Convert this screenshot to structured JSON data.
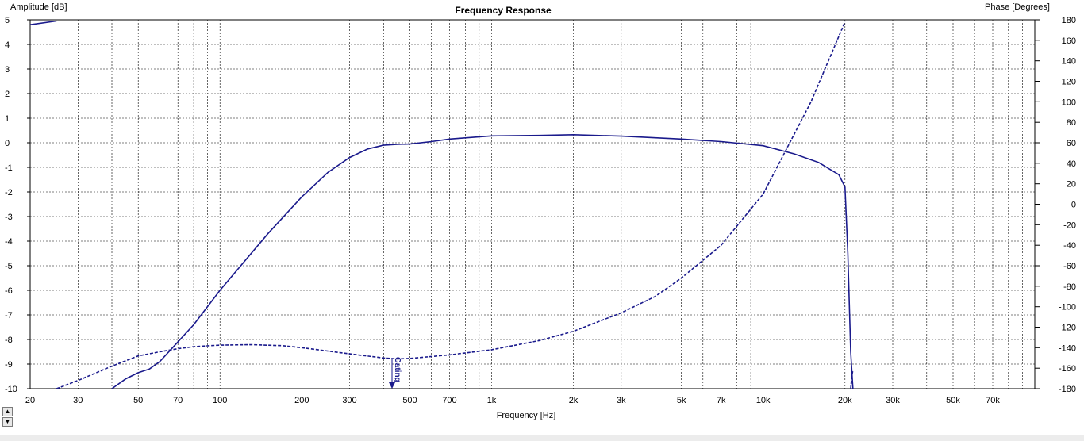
{
  "chart_data": {
    "type": "line",
    "title": "Frequency Response",
    "xlabel": "Frequency [Hz]",
    "ylabel_left": "Amplitude [dB]",
    "ylabel_right": "Phase [Degrees]",
    "x_scale": "log",
    "xlim": [
      20,
      100000
    ],
    "ylim_left": [
      -10,
      5
    ],
    "ylim_right": [
      -180,
      180
    ],
    "grid": true,
    "x_major_ticks": [
      20,
      30,
      50,
      70,
      100,
      200,
      300,
      500,
      700,
      1000,
      2000,
      3000,
      5000,
      7000,
      10000,
      20000,
      30000,
      50000,
      70000
    ],
    "x_tick_labels": [
      "20",
      "30",
      "50",
      "70",
      "100",
      "200",
      "300",
      "500",
      "700",
      "1k",
      "2k",
      "3k",
      "5k",
      "7k",
      "10k",
      "20k",
      "30k",
      "50k",
      "70k"
    ],
    "y_left_ticks": [
      5,
      4,
      3,
      2,
      1,
      0,
      -1,
      -2,
      -3,
      -4,
      -5,
      -6,
      -7,
      -8,
      -9,
      -10
    ],
    "y_left_tick_labels": [
      "5",
      "4",
      "3",
      "2",
      "1",
      "0",
      "-1",
      "-2",
      "-3",
      "-4",
      "-5",
      "-6",
      "-7",
      "-8",
      "-9",
      "-10"
    ],
    "y_right_ticks": [
      180,
      160,
      140,
      120,
      100,
      80,
      60,
      40,
      20,
      0,
      -20,
      -40,
      -60,
      -80,
      -100,
      -120,
      -140,
      -160,
      -180
    ],
    "y_right_tick_labels": [
      "180",
      "160",
      "140",
      "120",
      "100",
      "80",
      "60",
      "40",
      "20",
      "0",
      "-20",
      "-40",
      "-60",
      "-80",
      "-100",
      "-120",
      "-140",
      "-160",
      "-180"
    ],
    "series": [
      {
        "axis": "left",
        "style": "solid",
        "color": "#1a1a8c",
        "x": [
          40,
          45,
          50,
          55,
          60,
          70,
          80,
          100,
          150,
          200,
          250,
          300,
          350,
          400,
          450,
          500,
          600,
          700,
          800,
          1000,
          1500,
          2000,
          3000,
          5000,
          7000,
          10000,
          13000,
          16000,
          19000,
          20000,
          20500,
          21000,
          21400
        ],
        "y": [
          -10,
          -9.6,
          -9.35,
          -9.2,
          -8.9,
          -8.1,
          -7.4,
          -6.0,
          -3.7,
          -2.2,
          -1.2,
          -0.6,
          -0.25,
          -0.1,
          -0.06,
          -0.05,
          0.05,
          0.15,
          0.2,
          0.28,
          0.3,
          0.33,
          0.27,
          0.15,
          0.05,
          -0.12,
          -0.45,
          -0.8,
          -1.3,
          -1.8,
          -4.5,
          -8.5,
          -10
        ]
      },
      {
        "axis": "left",
        "style": "solid",
        "color": "#1a1a8c",
        "x": [
          20,
          25
        ],
        "y": [
          4.8,
          4.95
        ]
      },
      {
        "axis": "right",
        "style": "dashed",
        "color": "#1a1a8c",
        "x": [
          25,
          30,
          40,
          50,
          60,
          70,
          80,
          100,
          130,
          170,
          200,
          300,
          400,
          450,
          500,
          700,
          1000,
          1500,
          2000,
          3000,
          4000,
          5000,
          7000,
          10000,
          15000,
          20000
        ],
        "y": [
          -180,
          -172,
          -158,
          -148,
          -144,
          -141,
          -139,
          -137.5,
          -137,
          -138,
          -140,
          -146,
          -150,
          -151,
          -150.5,
          -147,
          -142,
          -133,
          -124,
          -106,
          -90,
          -72,
          -40,
          10,
          100,
          178
        ]
      },
      {
        "axis": "right",
        "style": "dashed",
        "color": "#1a1a8c",
        "x": [
          21000,
          21200,
          21400
        ],
        "y": [
          -180,
          -168,
          -162
        ]
      }
    ],
    "markers": [
      {
        "x": 430,
        "label": "Gating"
      }
    ]
  }
}
